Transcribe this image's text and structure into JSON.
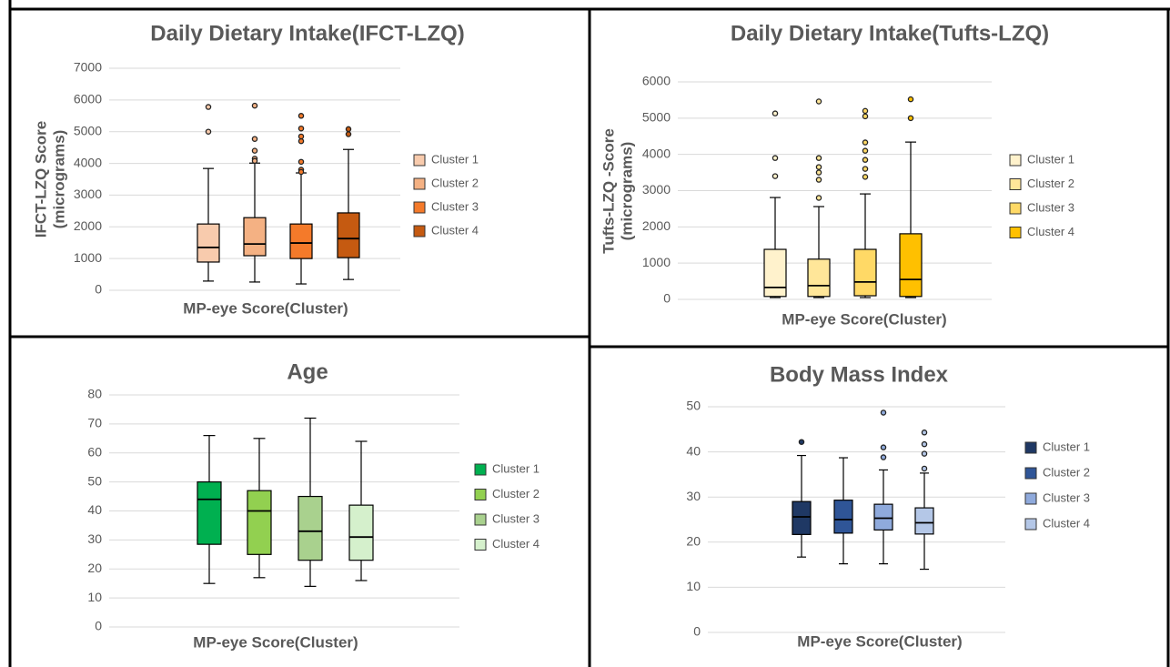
{
  "chart_data": [
    {
      "type": "box",
      "title": "Daily Dietary Intake(IFCT-LZQ)",
      "y_label": [
        "IFCT-LZQ Score",
        "(micrograms)"
      ],
      "x_label": "MP-eye Score(Cluster)",
      "ylim": [
        0,
        7000
      ],
      "yticks": [
        0,
        1000,
        2000,
        3000,
        4000,
        5000,
        6000,
        7000
      ],
      "grid": true,
      "series": [
        {
          "name": "Cluster 1",
          "color": "#f8cbad",
          "whisker_low": 290,
          "q1": 890,
          "median": 1350,
          "q3": 2090,
          "whisker_high": 3840,
          "outliers": [
            5780,
            5000
          ]
        },
        {
          "name": "Cluster 2",
          "color": "#f4b183",
          "whisker_low": 260,
          "q1": 1090,
          "median": 1460,
          "q3": 2290,
          "whisker_high": 4010,
          "outliers": [
            5820,
            4770,
            4400,
            4150,
            4080
          ]
        },
        {
          "name": "Cluster 3",
          "color": "#f47a2a",
          "whisker_low": 200,
          "q1": 1000,
          "median": 1490,
          "q3": 2090,
          "whisker_high": 3700,
          "outliers": [
            5500,
            5100,
            4850,
            4700,
            4050,
            3800,
            3730
          ]
        },
        {
          "name": "Cluster 4",
          "color": "#c55a11",
          "whisker_low": 340,
          "q1": 1030,
          "median": 1630,
          "q3": 2440,
          "whisker_high": 4440,
          "outliers": [
            5080,
            4920
          ]
        }
      ]
    },
    {
      "type": "box",
      "title": "Daily Dietary Intake(Tufts-LZQ)",
      "y_label": [
        "Tufts-LZQ -Score",
        "(micrograms)"
      ],
      "x_label": "MP-eye Score(Cluster)",
      "ylim": [
        0,
        6000
      ],
      "yticks": [
        0,
        1000,
        2000,
        3000,
        4000,
        5000,
        6000
      ],
      "grid": true,
      "series": [
        {
          "name": "Cluster 1",
          "color": "#fff2cc",
          "whisker_low": 50,
          "q1": 80,
          "median": 330,
          "q3": 1380,
          "whisker_high": 2810,
          "outliers": [
            5130,
            3900,
            3400
          ]
        },
        {
          "name": "Cluster 2",
          "color": "#ffe699",
          "whisker_low": 50,
          "q1": 80,
          "median": 380,
          "q3": 1110,
          "whisker_high": 2560,
          "outliers": [
            5460,
            3900,
            3650,
            3500,
            3300,
            2800
          ]
        },
        {
          "name": "Cluster 3",
          "color": "#ffd966",
          "whisker_low": 50,
          "q1": 100,
          "median": 480,
          "q3": 1380,
          "whisker_high": 2910,
          "outliers": [
            5200,
            5050,
            4330,
            4100,
            3850,
            3600,
            3380
          ]
        },
        {
          "name": "Cluster 4",
          "color": "#ffc000",
          "whisker_low": 50,
          "q1": 80,
          "median": 550,
          "q3": 1810,
          "whisker_high": 4340,
          "outliers": [
            5520,
            5000
          ]
        }
      ]
    },
    {
      "type": "box",
      "title": "Age",
      "x_label": "MP-eye Score(Cluster)",
      "ylim": [
        0,
        80
      ],
      "yticks": [
        0,
        10,
        20,
        30,
        40,
        50,
        60,
        70,
        80
      ],
      "grid": true,
      "series": [
        {
          "name": "Cluster 1",
          "color": "#00b050",
          "whisker_low": 15,
          "q1": 28.5,
          "median": 44,
          "q3": 50,
          "whisker_high": 66,
          "outliers": []
        },
        {
          "name": "Cluster 2",
          "color": "#92d050",
          "whisker_low": 17,
          "q1": 25,
          "median": 40,
          "q3": 47,
          "whisker_high": 65,
          "outliers": []
        },
        {
          "name": "Cluster 3",
          "color": "#a9d18e",
          "whisker_low": 14,
          "q1": 23,
          "median": 33,
          "q3": 45,
          "whisker_high": 72,
          "outliers": []
        },
        {
          "name": "Cluster 4",
          "color": "#d5f0cc",
          "whisker_low": 16,
          "q1": 23,
          "median": 31,
          "q3": 42,
          "whisker_high": 64,
          "outliers": []
        }
      ]
    },
    {
      "type": "box",
      "title": "Body Mass Index",
      "x_label": "MP-eye Score(Cluster)",
      "ylim": [
        0,
        50
      ],
      "yticks": [
        0,
        10,
        20,
        30,
        40,
        50
      ],
      "grid": true,
      "series": [
        {
          "name": "Cluster 1",
          "color": "#1f3864",
          "whisker_low": 16.7,
          "q1": 21.7,
          "median": 25.6,
          "q3": 29,
          "whisker_high": 39.2,
          "outliers": [
            42.2
          ]
        },
        {
          "name": "Cluster 2",
          "color": "#2f5597",
          "whisker_low": 15.2,
          "q1": 22,
          "median": 25,
          "q3": 29.3,
          "whisker_high": 38.7,
          "outliers": []
        },
        {
          "name": "Cluster 3",
          "color": "#8faadc",
          "whisker_low": 15.2,
          "q1": 22.7,
          "median": 25.3,
          "q3": 28.4,
          "whisker_high": 36,
          "outliers": [
            48.7,
            41,
            38.8
          ]
        },
        {
          "name": "Cluster 4",
          "color": "#b4c7e7",
          "whisker_low": 14,
          "q1": 21.8,
          "median": 24.3,
          "q3": 27.6,
          "whisker_high": 35.3,
          "outliers": [
            44.3,
            41.7,
            39.6,
            36.3
          ]
        }
      ]
    }
  ]
}
